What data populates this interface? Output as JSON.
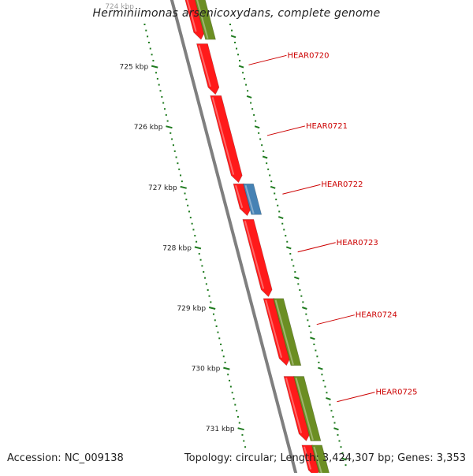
{
  "title": "Herminiimonas arsenicoxydans, complete genome",
  "accession_text": "Accession: NC_009138",
  "summary_text": "Topology: circular; Length: 3,424,307 bp; Genes: 3,353",
  "colors": {
    "backbone": "#7f7f7f",
    "gene_red": "#ff1a1a",
    "gene_green": "#6b8e23",
    "gene_blue": "#4682b4",
    "scale_dots": "#1e7a1e",
    "label": "#cc0000"
  },
  "scale": {
    "unit": "kbp",
    "ticks": [
      {
        "value": 724,
        "label": "724 kbp"
      },
      {
        "value": 725,
        "label": "725 kbp"
      },
      {
        "value": 726,
        "label": "726 kbp"
      },
      {
        "value": 727,
        "label": "727 kbp"
      },
      {
        "value": 728,
        "label": "728 kbp"
      },
      {
        "value": 729,
        "label": "729 kbp"
      },
      {
        "value": 730,
        "label": "730 kbp"
      },
      {
        "value": 731,
        "label": "731 kbp"
      }
    ]
  },
  "genes": [
    {
      "id": "HEAR0719",
      "track": "strand-forward",
      "color": "red",
      "start": 723.6,
      "end": 724.55,
      "labeled": false
    },
    {
      "id": "HEAR0720",
      "track": "strand-forward",
      "color": "red",
      "start": 724.62,
      "end": 725.46,
      "labeled": true
    },
    {
      "id": "HEAR0721",
      "track": "strand-forward",
      "color": "red",
      "start": 725.48,
      "end": 726.92,
      "labeled": true
    },
    {
      "id": "HEAR0722",
      "track": "strand-forward",
      "color": "red",
      "start": 726.94,
      "end": 727.47,
      "labeled": true
    },
    {
      "id": "HEAR0723",
      "track": "strand-forward",
      "color": "red",
      "start": 727.53,
      "end": 728.81,
      "labeled": true
    },
    {
      "id": "HEAR0724",
      "track": "strand-forward",
      "color": "red",
      "start": 728.84,
      "end": 729.95,
      "labeled": true
    },
    {
      "id": "HEAR0725",
      "track": "strand-forward",
      "color": "red",
      "start": 730.13,
      "end": 731.2,
      "labeled": true
    },
    {
      "id": "HEAR0726",
      "track": "strand-forward",
      "color": "red",
      "start": 731.27,
      "end": 731.8,
      "labeled": false
    },
    {
      "id": "cog-0719",
      "track": "cog",
      "color": "green",
      "start": 723.6,
      "end": 724.55,
      "labeled": false
    },
    {
      "id": "cog-0722",
      "track": "cog",
      "color": "blue",
      "start": 726.94,
      "end": 727.45,
      "labeled": false
    },
    {
      "id": "cog-0724",
      "track": "cog",
      "color": "green",
      "start": 728.84,
      "end": 729.95,
      "labeled": false
    },
    {
      "id": "cog-0725",
      "track": "cog",
      "color": "green",
      "start": 730.13,
      "end": 731.2,
      "labeled": false
    },
    {
      "id": "cog-0726",
      "track": "cog",
      "color": "green",
      "start": 731.27,
      "end": 731.8,
      "labeled": false
    }
  ],
  "gene_labels": [
    {
      "text": "HEAR0720",
      "at": 724.97
    },
    {
      "text": "HEAR0721",
      "at": 726.14
    },
    {
      "text": "HEAR0722",
      "at": 727.11
    },
    {
      "text": "HEAR0723",
      "at": 728.07
    },
    {
      "text": "HEAR0724",
      "at": 729.27
    },
    {
      "text": "HEAR0725",
      "at": 730.55
    }
  ]
}
